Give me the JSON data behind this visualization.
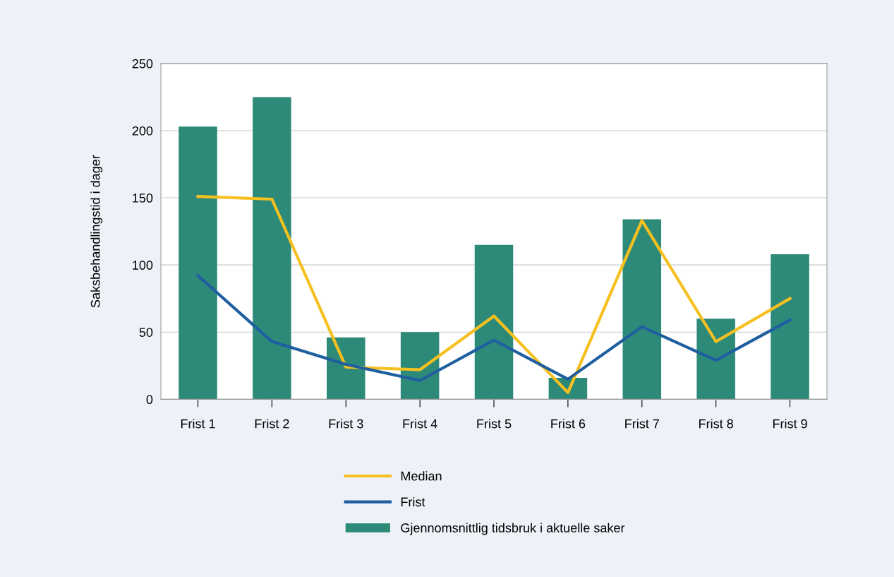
{
  "chart_data": {
    "type": "bar",
    "ylabel": "Saksbehandlingstid i dager",
    "categories": [
      "Frist 1",
      "Frist 2",
      "Frist 3",
      "Frist 4",
      "Frist 5",
      "Frist 6",
      "Frist 7",
      "Frist 8",
      "Frist 9"
    ],
    "series": [
      {
        "name": "Median",
        "type": "line",
        "color": "#f5c020",
        "values": [
          151,
          149,
          24,
          22,
          62,
          5,
          133,
          43,
          75
        ]
      },
      {
        "name": "Frist",
        "type": "line",
        "color": "#1f5fa0",
        "values": [
          92,
          43,
          26,
          14,
          44,
          15,
          54,
          29,
          59
        ]
      },
      {
        "name": "Gjennomsnittlig tidsbruk i aktuelle saker",
        "color": "#2e8a78",
        "values": [
          203,
          225,
          46,
          50,
          115,
          16,
          134,
          60,
          108
        ]
      }
    ],
    "ylim": [
      0,
      250
    ],
    "yticks": [
      0,
      50,
      100,
      150,
      200,
      250
    ],
    "grid": "y",
    "legend": "bottom",
    "marker": "none",
    "line_style": "solid"
  }
}
